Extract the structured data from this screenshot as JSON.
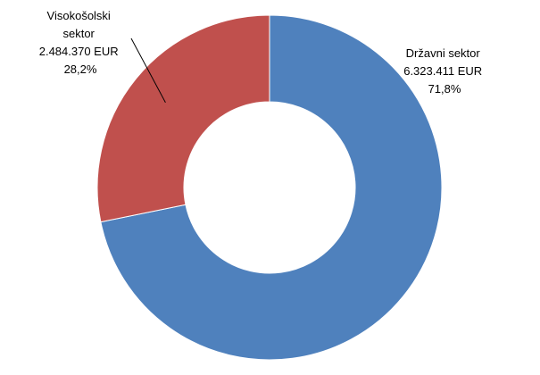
{
  "chart_data": {
    "type": "donut",
    "title": "",
    "slices": [
      {
        "name": "Državni sektor",
        "value": 6323411,
        "unit": "EUR",
        "value_text": "6.323.411 EUR",
        "percent": 71.8,
        "percent_text": "71,8%",
        "color": "#4f81bd"
      },
      {
        "name": "Visokošolski sektor",
        "name_lines": [
          "Visokošolski",
          "sektor"
        ],
        "value": 2484370,
        "unit": "EUR",
        "value_text": "2.484.370 EUR",
        "percent": 28.2,
        "percent_text": "28,2%",
        "color": "#c0504d"
      }
    ],
    "start": "12 o'clock",
    "direction": "clockwise",
    "leader_line": "Visokošolski sektor",
    "legend": "none"
  }
}
